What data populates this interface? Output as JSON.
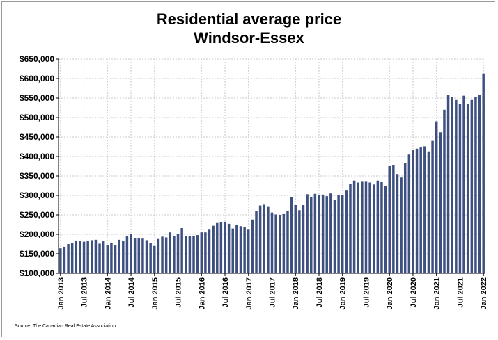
{
  "chart_data": {
    "type": "bar",
    "title_lines": [
      "Residential average price",
      "Windsor-Essex"
    ],
    "xlabel": "",
    "ylabel": "",
    "ylim": [
      100000,
      650000
    ],
    "y_ticks": [
      100000,
      150000,
      200000,
      250000,
      300000,
      350000,
      400000,
      450000,
      500000,
      550000,
      600000,
      650000
    ],
    "y_tick_labels": [
      "$100,000",
      "$150,000",
      "$200,000",
      "$250,000",
      "$300,000",
      "$350,000",
      "$400,000",
      "$450,000",
      "$500,000",
      "$550,000",
      "$600,000",
      "$650,000"
    ],
    "x_tick_labels": [
      "Jan 2013",
      "Jul 2013",
      "Jan 2014",
      "Jul 2014",
      "Jan 2015",
      "Jul 2015",
      "Jan 2016",
      "Jul 2016",
      "Jan 2017",
      "Jul 2017",
      "Jan 2018",
      "Jul 2018",
      "Jan 2019",
      "Jul 2019",
      "Jan 2020",
      "Jul 2020",
      "Jan 2021",
      "Jul 2021",
      "Jan 2022"
    ],
    "grid": "both-dashed",
    "bar_color": "#3d5080",
    "categories": [
      "Jan 2013",
      "Feb 2013",
      "Mar 2013",
      "Apr 2013",
      "May 2013",
      "Jun 2013",
      "Jul 2013",
      "Aug 2013",
      "Sep 2013",
      "Oct 2013",
      "Nov 2013",
      "Dec 2013",
      "Jan 2014",
      "Feb 2014",
      "Mar 2014",
      "Apr 2014",
      "May 2014",
      "Jun 2014",
      "Jul 2014",
      "Aug 2014",
      "Sep 2014",
      "Oct 2014",
      "Nov 2014",
      "Dec 2014",
      "Jan 2015",
      "Feb 2015",
      "Mar 2015",
      "Apr 2015",
      "May 2015",
      "Jun 2015",
      "Jul 2015",
      "Aug 2015",
      "Sep 2015",
      "Oct 2015",
      "Nov 2015",
      "Dec 2015",
      "Jan 2016",
      "Feb 2016",
      "Mar 2016",
      "Apr 2016",
      "May 2016",
      "Jun 2016",
      "Jul 2016",
      "Aug 2016",
      "Sep 2016",
      "Oct 2016",
      "Nov 2016",
      "Dec 2016",
      "Jan 2017",
      "Feb 2017",
      "Mar 2017",
      "Apr 2017",
      "May 2017",
      "Jun 2017",
      "Jul 2017",
      "Aug 2017",
      "Sep 2017",
      "Oct 2017",
      "Nov 2017",
      "Dec 2017",
      "Jan 2018",
      "Feb 2018",
      "Mar 2018",
      "Apr 2018",
      "May 2018",
      "Jun 2018",
      "Jul 2018",
      "Aug 2018",
      "Sep 2018",
      "Oct 2018",
      "Nov 2018",
      "Dec 2018",
      "Jan 2019",
      "Feb 2019",
      "Mar 2019",
      "Apr 2019",
      "May 2019",
      "Jun 2019",
      "Jul 2019",
      "Aug 2019",
      "Sep 2019",
      "Oct 2019",
      "Nov 2019",
      "Dec 2019",
      "Jan 2020",
      "Feb 2020",
      "Mar 2020",
      "Apr 2020",
      "May 2020",
      "Jun 2020",
      "Jul 2020",
      "Aug 2020",
      "Sep 2020",
      "Oct 2020",
      "Nov 2020",
      "Dec 2020",
      "Jan 2021",
      "Feb 2021",
      "Mar 2021",
      "Apr 2021",
      "May 2021",
      "Jun 2021",
      "Jul 2021",
      "Aug 2021",
      "Sep 2021",
      "Oct 2021",
      "Nov 2021",
      "Dec 2021",
      "Jan 2022"
    ],
    "values": [
      164000,
      168000,
      175000,
      178000,
      184000,
      183000,
      181000,
      184000,
      185000,
      186000,
      176000,
      182000,
      172000,
      177000,
      172000,
      186000,
      184000,
      196000,
      200000,
      190000,
      191000,
      189000,
      185000,
      178000,
      170000,
      188000,
      194000,
      192000,
      205000,
      195000,
      200000,
      216000,
      196000,
      196000,
      195000,
      198000,
      205000,
      205000,
      212000,
      222000,
      229000,
      231000,
      231000,
      227000,
      215000,
      224000,
      221000,
      218000,
      212000,
      238000,
      260000,
      274000,
      276000,
      272000,
      256000,
      251000,
      250000,
      252000,
      260000,
      295000,
      275000,
      262000,
      275000,
      303000,
      295000,
      304000,
      302000,
      302000,
      298000,
      305000,
      288000,
      300000,
      300000,
      314000,
      329000,
      338000,
      333000,
      335000,
      335000,
      333000,
      328000,
      338000,
      334000,
      325000,
      375000,
      377000,
      355000,
      346000,
      383000,
      405000,
      416000,
      420000,
      423000,
      426000,
      413000,
      440000,
      490000,
      462000,
      520000,
      558000,
      552000,
      545000,
      534000,
      556000,
      535000,
      545000,
      552000,
      558000,
      613000
    ]
  },
  "footer": {
    "source": "Source: The Canadian Real Estate Association"
  }
}
